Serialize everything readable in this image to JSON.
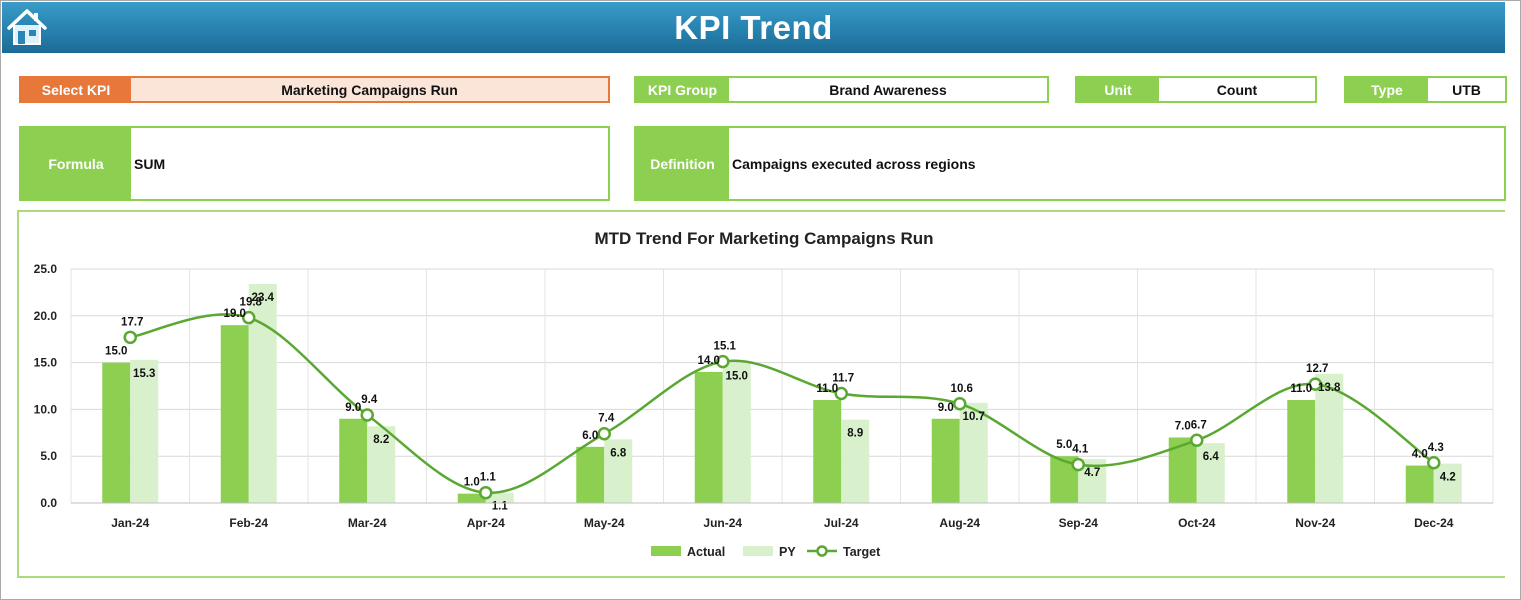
{
  "header": {
    "title": "KPI Trend",
    "home_icon": "home-icon"
  },
  "fields": {
    "select_kpi": {
      "label": "Select KPI",
      "value": "Marketing Campaigns Run"
    },
    "kpi_group": {
      "label": "KPI Group",
      "value": "Brand Awareness"
    },
    "unit": {
      "label": "Unit",
      "value": "Count"
    },
    "type": {
      "label": "Type",
      "value": "UTB"
    },
    "formula": {
      "label": "Formula",
      "value": "SUM"
    },
    "definition": {
      "label": "Definition",
      "value": "Campaigns executed across regions"
    }
  },
  "colors": {
    "actual": "#8dcf51",
    "py": "#d8f1cc",
    "target": "#5aa832",
    "select_accent": "#e8773a"
  },
  "chart_data": {
    "type": "bar",
    "title": "MTD Trend For Marketing Campaigns Run",
    "categories": [
      "Jan-24",
      "Feb-24",
      "Mar-24",
      "Apr-24",
      "May-24",
      "Jun-24",
      "Jul-24",
      "Aug-24",
      "Sep-24",
      "Oct-24",
      "Nov-24",
      "Dec-24"
    ],
    "series": [
      {
        "name": "Actual",
        "kind": "bar",
        "values": [
          15.0,
          19.0,
          9.0,
          1.0,
          6.0,
          14.0,
          11.0,
          9.0,
          5.0,
          7.0,
          11.0,
          4.0
        ]
      },
      {
        "name": "PY",
        "kind": "bar",
        "values": [
          15.3,
          23.4,
          8.2,
          1.1,
          6.8,
          15.0,
          8.9,
          10.7,
          4.7,
          6.4,
          13.8,
          4.2
        ]
      },
      {
        "name": "Target",
        "kind": "line",
        "values": [
          17.7,
          19.8,
          9.4,
          1.1,
          7.4,
          15.1,
          11.7,
          10.6,
          4.1,
          6.7,
          12.7,
          4.3
        ]
      }
    ],
    "ylim": [
      0,
      25
    ],
    "yticks": [
      "0.0",
      "5.0",
      "10.0",
      "15.0",
      "20.0",
      "25.0"
    ],
    "grid": true,
    "legend": "bottom"
  }
}
